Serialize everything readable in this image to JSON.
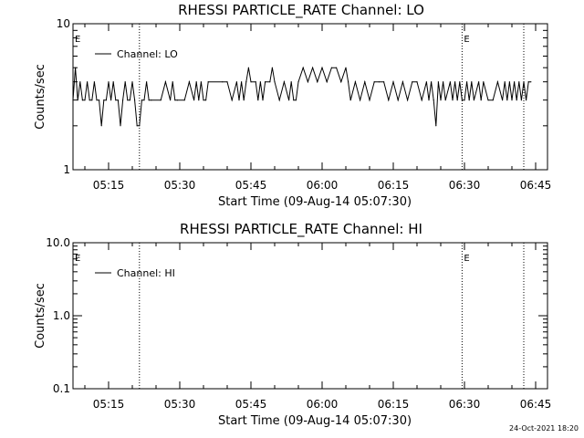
{
  "chart_data": [
    {
      "type": "line",
      "title": "RHESSI PARTICLE_RATE Channel: LO",
      "xlabel": "Start Time (09-Aug-14 05:07:30)",
      "ylabel": "Counts/sec",
      "yscale": "log",
      "ylim": [
        1,
        10
      ],
      "ytick_labels": [
        "1",
        "10"
      ],
      "xlim": [
        "05:07:30",
        "06:47:30"
      ],
      "xtick_labels": [
        "05:15",
        "05:30",
        "05:45",
        "06:00",
        "06:15",
        "06:30",
        "06:45"
      ],
      "markers": [
        {
          "label": "E",
          "time": "05:07:30"
        },
        {
          "label": "E",
          "time": "06:29:30"
        }
      ],
      "dotted_lines": [
        "05:21:30",
        "06:29:30",
        "06:42:30"
      ],
      "legend": "top-left",
      "series": [
        {
          "name": "Channel: LO",
          "x": [
            "05:07:30",
            "05:08:00",
            "05:08:30",
            "05:09:00",
            "05:09:30",
            "05:10:00",
            "05:10:30",
            "05:11:00",
            "05:11:30",
            "05:12:00",
            "05:12:30",
            "05:13:00",
            "05:13:30",
            "05:14:00",
            "05:14:30",
            "05:15:00",
            "05:15:30",
            "05:16:00",
            "05:16:30",
            "05:17:00",
            "05:17:30",
            "05:18:00",
            "05:18:30",
            "05:19:00",
            "05:19:30",
            "05:20:00",
            "05:20:30",
            "05:21:00",
            "05:21:30",
            "05:22:00",
            "05:22:30",
            "05:23:00",
            "05:23:30",
            "05:24:00",
            "05:26:00",
            "05:27:00",
            "05:28:00",
            "05:28:30",
            "05:29:00",
            "05:29:30",
            "05:31:00",
            "05:32:00",
            "05:33:00",
            "05:33:30",
            "05:34:00",
            "05:34:30",
            "05:35:00",
            "05:35:30",
            "05:36:00",
            "05:39:00",
            "05:40:00",
            "05:41:00",
            "05:42:00",
            "05:42:30",
            "05:43:00",
            "05:43:30",
            "05:44:00",
            "05:44:30",
            "05:45:00",
            "05:46:00",
            "05:46:30",
            "05:47:00",
            "05:47:30",
            "05:48:00",
            "05:49:00",
            "05:49:30",
            "05:50:00",
            "05:51:00",
            "05:52:00",
            "05:53:00",
            "05:53:30",
            "05:54:00",
            "05:54:30",
            "05:55:00",
            "05:56:00",
            "05:57:00",
            "05:58:00",
            "05:59:00",
            "06:00:00",
            "06:01:00",
            "06:02:00",
            "06:03:00",
            "06:04:00",
            "06:05:00",
            "06:05:30",
            "06:06:00",
            "06:07:00",
            "06:08:00",
            "06:09:00",
            "06:10:00",
            "06:11:00",
            "06:12:00",
            "06:13:00",
            "06:14:00",
            "06:15:00",
            "06:16:00",
            "06:17:00",
            "06:18:00",
            "06:19:00",
            "06:20:00",
            "06:21:00",
            "06:22:00",
            "06:22:30",
            "06:23:00",
            "06:23:30",
            "06:24:00",
            "06:24:30",
            "06:25:00",
            "06:25:30",
            "06:26:00",
            "06:27:00",
            "06:27:30",
            "06:28:00",
            "06:28:30",
            "06:29:00",
            "06:29:30",
            "06:30:00",
            "06:30:30",
            "06:31:00",
            "06:31:30",
            "06:32:00",
            "06:33:00",
            "06:33:30",
            "06:34:00",
            "06:35:00",
            "06:36:00",
            "06:37:00",
            "06:38:00",
            "06:38:30",
            "06:39:00",
            "06:39:30",
            "06:40:00",
            "06:40:30",
            "06:41:00",
            "06:41:30",
            "06:42:00",
            "06:42:30",
            "06:43:00",
            "06:43:30",
            "06:44:00"
          ],
          "y": [
            3,
            5,
            3,
            4,
            3,
            3,
            4,
            3,
            3,
            4,
            3,
            3,
            2,
            3,
            3,
            4,
            3,
            4,
            3,
            3,
            2,
            3,
            4,
            3,
            3,
            4,
            3,
            2,
            2,
            3,
            3,
            4,
            3,
            3,
            3,
            4,
            3,
            4,
            3,
            3,
            3,
            4,
            3,
            4,
            3,
            4,
            3,
            3,
            4,
            4,
            4,
            3,
            4,
            3,
            4,
            3,
            4,
            5,
            4,
            4,
            3,
            4,
            3,
            4,
            4,
            5,
            4,
            3,
            4,
            3,
            4,
            3,
            3,
            4,
            5,
            4,
            5,
            4,
            5,
            4,
            5,
            5,
            4,
            5,
            4,
            3,
            4,
            3,
            4,
            3,
            4,
            4,
            4,
            3,
            4,
            3,
            4,
            3,
            4,
            4,
            3,
            4,
            3,
            4,
            3,
            2,
            4,
            3,
            4,
            3,
            4,
            3,
            4,
            3,
            4,
            3,
            3,
            4,
            3,
            4,
            3,
            4,
            3,
            4,
            3,
            3,
            4,
            3,
            4,
            3,
            4,
            3,
            4,
            3,
            4,
            3,
            4,
            3,
            4,
            4
          ]
        }
      ]
    },
    {
      "type": "line",
      "title": "RHESSI PARTICLE_RATE Channel: HI",
      "xlabel": "Start Time (09-Aug-14 05:07:30)",
      "ylabel": "Counts/sec",
      "yscale": "log",
      "ylim": [
        0.1,
        10.0
      ],
      "ytick_labels": [
        "0.1",
        "1.0",
        "10.0"
      ],
      "xlim": [
        "05:07:30",
        "06:47:30"
      ],
      "xtick_labels": [
        "05:15",
        "05:30",
        "05:45",
        "06:00",
        "06:15",
        "06:30",
        "06:45"
      ],
      "markers": [
        {
          "label": "E",
          "time": "05:07:30"
        },
        {
          "label": "E",
          "time": "06:29:30"
        }
      ],
      "dotted_lines": [
        "05:21:30",
        "06:29:30",
        "06:42:30"
      ],
      "legend": "top-left",
      "series": [
        {
          "name": "Channel: HI",
          "x": [],
          "y": []
        }
      ]
    }
  ],
  "footer": {
    "timestamp": "24-Oct-2021 18:20"
  }
}
